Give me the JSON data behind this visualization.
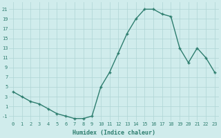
{
  "x": [
    0,
    1,
    2,
    3,
    4,
    5,
    6,
    7,
    8,
    9,
    10,
    11,
    12,
    13,
    14,
    15,
    16,
    17,
    18,
    19,
    20,
    21,
    22,
    23
  ],
  "y": [
    4,
    3,
    2,
    1.5,
    0.5,
    -0.5,
    -1,
    -1.5,
    -1.5,
    -1,
    5,
    8,
    12,
    16,
    19,
    21,
    21,
    20,
    19.5,
    13,
    10,
    13,
    11,
    8
  ],
  "xlabel": "Humidex (Indice chaleur)",
  "yticks": [
    -1,
    1,
    3,
    5,
    7,
    9,
    11,
    13,
    15,
    17,
    19,
    21
  ],
  "xticks": [
    0,
    1,
    2,
    3,
    4,
    5,
    6,
    7,
    8,
    9,
    10,
    11,
    12,
    13,
    14,
    15,
    16,
    17,
    18,
    19,
    20,
    21,
    22,
    23
  ],
  "ylim": [
    -2,
    22.5
  ],
  "xlim": [
    -0.5,
    23.5
  ],
  "line_color": "#2d7d6e",
  "marker": "+",
  "markersize": 3,
  "markeredgewidth": 1.0,
  "linewidth": 1.0,
  "bg_color": "#d0ecec",
  "grid_color": "#aed4d4",
  "xlabel_fontsize": 6.0,
  "tick_fontsize": 5.0
}
